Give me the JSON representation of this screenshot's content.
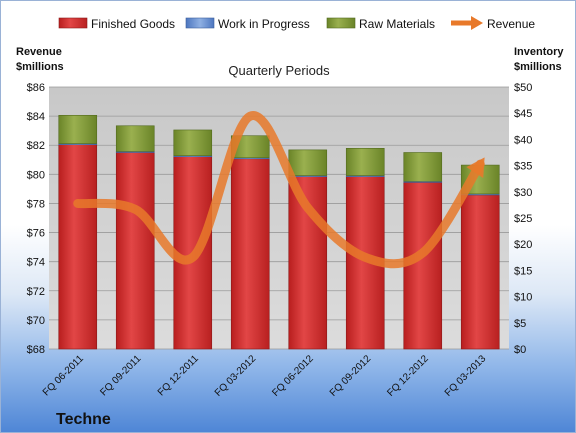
{
  "chart_data": {
    "type": "bar",
    "subtitle": "Quarterly Periods",
    "company": "Techne",
    "left_axis_title": [
      "Revenue",
      "$millions"
    ],
    "right_axis_title": [
      "Inventory",
      "$millions"
    ],
    "categories": [
      "FQ 06-2011",
      "FQ 09-2011",
      "FQ 12-2011",
      "FQ 03-2012",
      "FQ 06-2012",
      "FQ 09-2012",
      "FQ 12-2012",
      "FQ 03-2013"
    ],
    "left_ylim": [
      68,
      86
    ],
    "left_ticks": [
      "$68",
      "$70",
      "$72",
      "$74",
      "$76",
      "$78",
      "$80",
      "$82",
      "$84",
      "$86"
    ],
    "right_ylim": [
      0,
      50
    ],
    "right_ticks": [
      "$0",
      "$5",
      "$10",
      "$15",
      "$20",
      "$25",
      "$30",
      "$35",
      "$40",
      "$45",
      "$50"
    ],
    "series": [
      {
        "name": "Finished Goods",
        "axis": "right",
        "stacked": true,
        "color": "#cc2a2a",
        "values": [
          39,
          37.5,
          36.7,
          36.3,
          32.9,
          32.9,
          31.8,
          29.4
        ]
      },
      {
        "name": "Work in Progress",
        "axis": "right",
        "stacked": true,
        "color": "#6f95d2",
        "values": [
          0.2,
          0.2,
          0.2,
          0.2,
          0.2,
          0.2,
          0.2,
          0.2
        ]
      },
      {
        "name": "Raw Materials",
        "axis": "right",
        "stacked": true,
        "color": "#7f9a3a",
        "values": [
          5.4,
          4.9,
          4.9,
          4.2,
          4.9,
          5.2,
          5.5,
          5.5
        ]
      },
      {
        "name": "Revenue",
        "axis": "left",
        "type": "line",
        "color": "#e8792a",
        "values": [
          78,
          77.6,
          74.3,
          84,
          77.7,
          74.3,
          74.6,
          80.7
        ]
      }
    ],
    "grid": true,
    "legend_position": "top"
  }
}
